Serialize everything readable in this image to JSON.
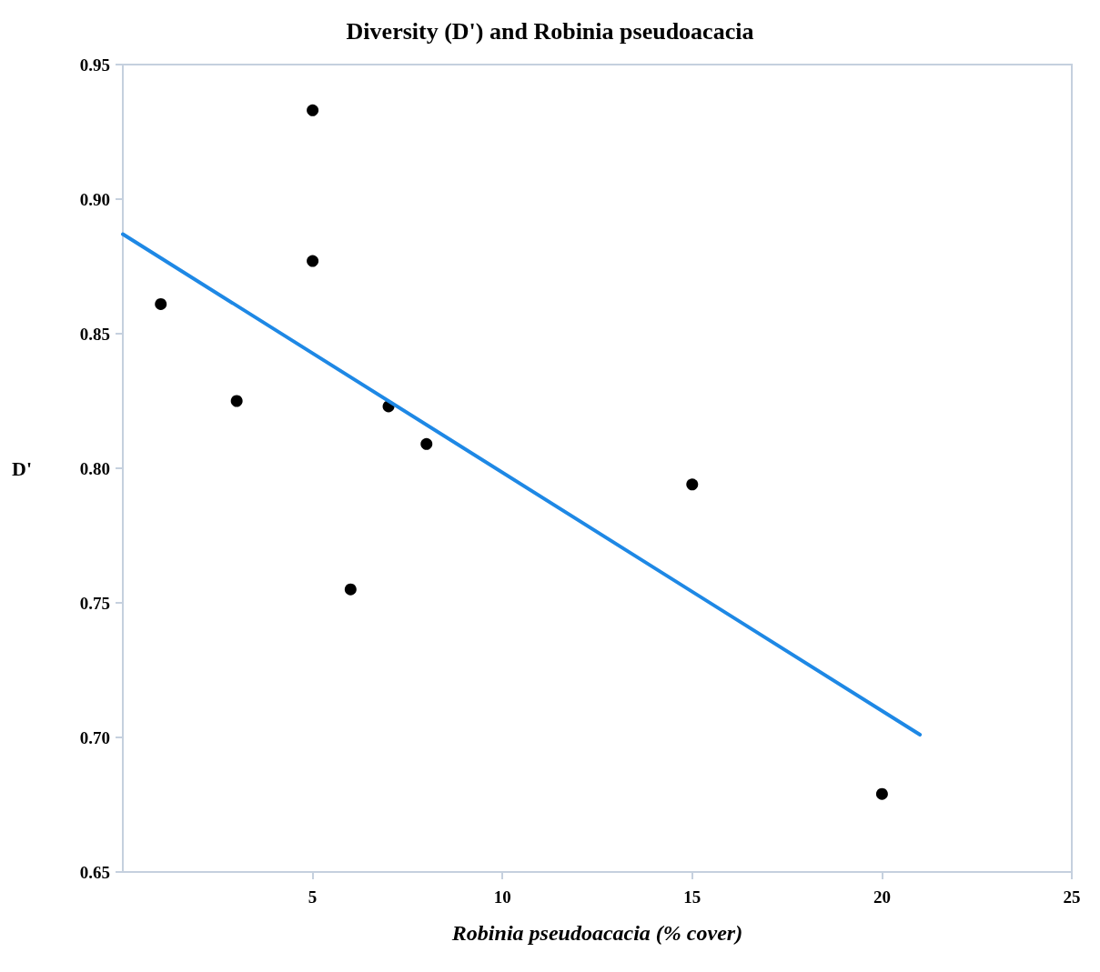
{
  "chart_data": {
    "type": "scatter",
    "title": "Diversity (D') and Robinia pseudoacacia",
    "xlabel": "Robinia pseudoacacia (% cover)",
    "ylabel": "D'",
    "x": [
      1,
      3,
      5,
      5,
      6,
      7,
      8,
      15,
      20
    ],
    "series": [
      {
        "color": "#000000",
        "values": [
          0.861,
          0.825,
          0.933,
          0.877,
          0.755,
          0.823,
          0.809,
          0.794,
          0.679
        ],
        "marker": "circle"
      },
      {
        "type": "line",
        "color": "#1e88e5",
        "x": [
          0,
          21
        ],
        "values": [
          0.887,
          0.701
        ],
        "marker": "none",
        "line_style": "solid"
      }
    ],
    "xlim": [
      0,
      25
    ],
    "xticks": [
      5,
      10,
      15,
      20,
      25
    ],
    "ylim": [
      0.65,
      0.95
    ],
    "yticks": [
      {
        "value": 0.65,
        "label": "0.65"
      },
      {
        "value": 0.7,
        "label": "0.70"
      },
      {
        "value": 0.75,
        "label": "0.75"
      },
      {
        "value": 0.8,
        "label": "0.80"
      },
      {
        "value": 0.85,
        "label": "0.85"
      },
      {
        "value": 0.9,
        "label": "0.90"
      },
      {
        "value": 0.95,
        "label": "0.95"
      }
    ],
    "grid": false
  }
}
